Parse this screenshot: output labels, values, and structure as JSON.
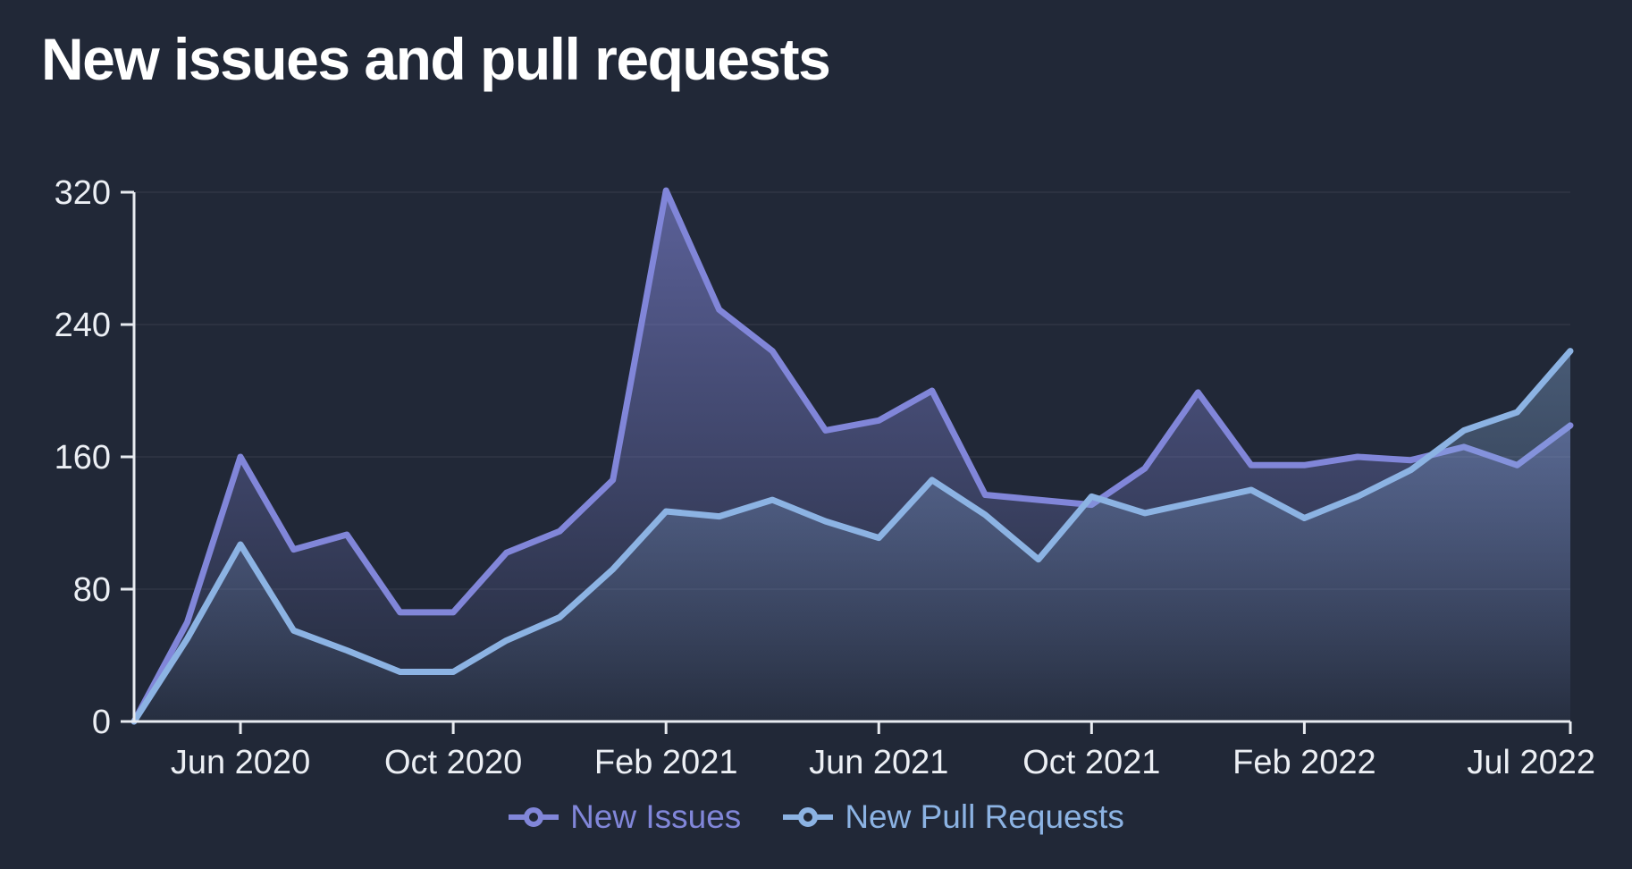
{
  "title": "New issues and pull requests",
  "colors": {
    "background": "#212837",
    "title_text": "#ffffff",
    "axis_line": "#e8ebf0",
    "tick_label": "#eceff4",
    "gridline": "rgba(255,255,255,0.05)",
    "new_issues": "#8186d9",
    "new_pull_requests": "#8cb3e3"
  },
  "legend": {
    "items": [
      {
        "label": "New Issues",
        "color": "#8186d9"
      },
      {
        "label": "New Pull Requests",
        "color": "#8cb3e3"
      }
    ]
  },
  "chart_data": {
    "type": "area",
    "title": "New issues and pull requests",
    "xlabel": "",
    "ylabel": "",
    "x": [
      "Apr 2020",
      "May 2020",
      "Jun 2020",
      "Jul 2020",
      "Aug 2020",
      "Sep 2020",
      "Oct 2020",
      "Nov 2020",
      "Dec 2020",
      "Jan 2021",
      "Feb 2021",
      "Mar 2021",
      "Apr 2021",
      "May 2021",
      "Jun 2021",
      "Jul 2021",
      "Aug 2021",
      "Sep 2021",
      "Oct 2021",
      "Nov 2021",
      "Dec 2021",
      "Jan 2022",
      "Feb 2022",
      "Mar 2022",
      "Apr 2022",
      "May 2022",
      "Jun 2022",
      "Jul 2022"
    ],
    "series": [
      {
        "name": "New Issues",
        "color": "#8186d9",
        "values": [
          0,
          60,
          160,
          104,
          113,
          66,
          66,
          102,
          115,
          146,
          321,
          249,
          224,
          176,
          182,
          200,
          137,
          134,
          131,
          153,
          199,
          155,
          155,
          160,
          158,
          166,
          155,
          179
        ]
      },
      {
        "name": "New Pull Requests",
        "color": "#8cb3e3",
        "values": [
          0,
          50,
          107,
          55,
          43,
          30,
          30,
          49,
          63,
          92,
          127,
          124,
          134,
          121,
          111,
          146,
          125,
          98,
          136,
          126,
          133,
          140,
          123,
          136,
          152,
          176,
          187,
          224
        ]
      }
    ],
    "x_tick_labels": [
      "Jun 2020",
      "Oct 2020",
      "Feb 2021",
      "Jun 2021",
      "Oct 2021",
      "Feb 2022",
      "Jul 2022"
    ],
    "x_tick_indices": [
      2,
      6,
      10,
      14,
      18,
      22,
      27
    ],
    "y_ticks": [
      0,
      80,
      160,
      240,
      320
    ],
    "ylim": [
      0,
      320
    ],
    "grid": true,
    "legend_position": "bottom"
  }
}
